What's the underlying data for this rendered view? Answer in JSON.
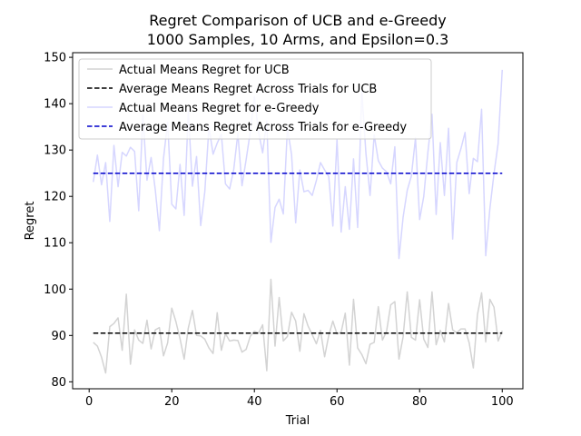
{
  "chart_data": {
    "type": "line",
    "title": "Regret Comparison of UCB and e-Greedy",
    "subtitle": "1000 Samples, 10 Arms, and Epsilon=0.3",
    "xlabel": "Trial",
    "ylabel": "Regret",
    "xlim": [
      -4,
      105
    ],
    "ylim": [
      78.5,
      151
    ],
    "xticks": [
      0,
      20,
      40,
      60,
      80,
      100
    ],
    "yticks": [
      80,
      90,
      100,
      110,
      120,
      130,
      140,
      150
    ],
    "grid": false,
    "legend_position": "top-left",
    "series": [
      {
        "name": "Actual Means Regret for UCB",
        "style": "solid",
        "color": "#d3d3d3",
        "x": [
          1,
          2,
          3,
          4,
          5,
          6,
          7,
          8,
          9,
          10,
          11,
          12,
          13,
          14,
          15,
          16,
          17,
          18,
          19,
          20,
          21,
          22,
          23,
          24,
          25,
          26,
          27,
          28,
          29,
          30,
          31,
          32,
          33,
          34,
          35,
          36,
          37,
          38,
          39,
          40,
          41,
          42,
          43,
          44,
          45,
          46,
          47,
          48,
          49,
          50,
          51,
          52,
          53,
          54,
          55,
          56,
          57,
          58,
          59,
          60,
          61,
          62,
          63,
          64,
          65,
          66,
          67,
          68,
          69,
          70,
          71,
          72,
          73,
          74,
          75,
          76,
          77,
          78,
          79,
          80,
          81,
          82,
          83,
          84,
          85,
          86,
          87,
          88,
          89,
          90,
          91,
          92,
          93,
          94,
          95,
          96,
          97,
          98,
          99,
          100
        ],
        "values": [
          88.5,
          87.7,
          85.3,
          81.9,
          91.9,
          92.6,
          93.8,
          86.8,
          98.9,
          83.8,
          91.2,
          89.0,
          88.3,
          93.3,
          87.1,
          91.2,
          91.7,
          85.6,
          88.4,
          95.9,
          93.0,
          89.3,
          84.9,
          91.6,
          95.4,
          90.0,
          89.9,
          89.2,
          87.3,
          86.1,
          94.9,
          86.8,
          90.4,
          88.8,
          89.0,
          88.9,
          86.4,
          87.0,
          89.8,
          90.9,
          90.5,
          92.3,
          82.4,
          102.1,
          87.7,
          98.2,
          88.8,
          89.8,
          95.0,
          93.1,
          86.6,
          94.7,
          92.0,
          90.2,
          88.2,
          91.1,
          85.4,
          90.0,
          93.1,
          90.3,
          90.7,
          94.8,
          83.6,
          97.8,
          87.3,
          85.9,
          83.9,
          88.1,
          88.5,
          96.2,
          89.0,
          90.9,
          96.6,
          97.3,
          84.9,
          89.7,
          99.4,
          89.6,
          89.0,
          97.7,
          89.2,
          87.4,
          99.4,
          88.0,
          91.1,
          88.6,
          96.9,
          91.2,
          90.6,
          91.4,
          91.4,
          88.4,
          83.0,
          94.5,
          99.2,
          88.6,
          97.8,
          96.1,
          88.8,
          91.0
        ]
      },
      {
        "name": "Average Means Regret Across Trials for UCB",
        "style": "dashed",
        "color": "#000000",
        "x": [
          1,
          100
        ],
        "values": [
          90.5,
          90.5
        ]
      },
      {
        "name": "Actual Means Regret for e-Greedy",
        "style": "solid",
        "color": "#d6d6ff",
        "x": [
          1,
          2,
          3,
          4,
          5,
          6,
          7,
          8,
          9,
          10,
          11,
          12,
          13,
          14,
          15,
          16,
          17,
          18,
          19,
          20,
          21,
          22,
          23,
          24,
          25,
          26,
          27,
          28,
          29,
          30,
          31,
          32,
          33,
          34,
          35,
          36,
          37,
          38,
          39,
          40,
          41,
          42,
          43,
          44,
          45,
          46,
          47,
          48,
          49,
          50,
          51,
          52,
          53,
          54,
          55,
          56,
          57,
          58,
          59,
          60,
          61,
          62,
          63,
          64,
          65,
          66,
          67,
          68,
          69,
          70,
          71,
          72,
          73,
          74,
          75,
          76,
          77,
          78,
          79,
          80,
          81,
          82,
          83,
          84,
          85,
          86,
          87,
          88,
          89,
          90,
          91,
          92,
          93,
          94,
          95,
          96,
          97,
          98,
          99,
          100
        ],
        "values": [
          123.1,
          128.9,
          122.5,
          127.3,
          114.6,
          131.0,
          122.1,
          129.5,
          128.7,
          130.6,
          129.7,
          116.9,
          137.6,
          123.5,
          128.4,
          121.5,
          112.6,
          128.2,
          136.0,
          118.3,
          117.3,
          126.9,
          115.9,
          138.4,
          122.2,
          128.6,
          113.7,
          121.0,
          135.0,
          129.1,
          131.5,
          133.4,
          122.7,
          121.6,
          125.8,
          133.6,
          122.3,
          127.9,
          133.9,
          141.5,
          133.9,
          129.4,
          136.3,
          110.1,
          117.6,
          119.4,
          116.2,
          134.8,
          129.0,
          114.3,
          125.7,
          121.0,
          121.3,
          120.2,
          123.4,
          127.3,
          125.7,
          124.3,
          113.6,
          132.2,
          112.3,
          122.1,
          112.9,
          128.1,
          113.3,
          142.7,
          129.3,
          120.2,
          133.3,
          127.7,
          126.1,
          125.3,
          122.7,
          130.7,
          106.6,
          115.5,
          121.3,
          124.4,
          132.6,
          115.0,
          120.0,
          129.5,
          137.7,
          116.1,
          131.6,
          120.2,
          134.7,
          110.8,
          127.3,
          130.3,
          133.8,
          120.6,
          128.2,
          127.5,
          138.8,
          107.2,
          117.3,
          124.9,
          131.4,
          147.3
        ]
      },
      {
        "name": "Average Means Regret Across Trials for e-Greedy",
        "style": "dashed",
        "color": "#0000cc",
        "x": [
          1,
          100
        ],
        "values": [
          125,
          125
        ]
      }
    ]
  }
}
